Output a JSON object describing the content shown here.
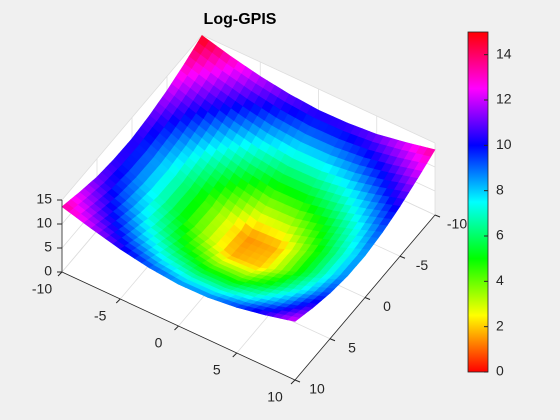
{
  "chart_data": {
    "type": "surface",
    "title": "Log-GPIS",
    "x": [
      -10,
      -7.5,
      -5,
      -2.5,
      0,
      2.5,
      5,
      7.5,
      10
    ],
    "y": [
      -10,
      -7.5,
      -5,
      -2.5,
      0,
      2.5,
      5,
      7.5,
      10
    ],
    "z": [
      [
        14.9,
        13.3,
        12.0,
        11.1,
        10.6,
        10.7,
        11.2,
        12.3,
        13.6
      ],
      [
        13.3,
        11.5,
        10.0,
        8.8,
        8.2,
        8.3,
        9.0,
        10.3,
        11.9
      ],
      [
        12.0,
        10.0,
        8.1,
        6.7,
        5.8,
        5.9,
        6.9,
        8.5,
        10.4
      ],
      [
        11.1,
        8.8,
        6.7,
        4.8,
        3.5,
        3.7,
        5.1,
        7.1,
        9.3
      ],
      [
        10.6,
        8.2,
        5.8,
        3.5,
        1.4,
        1.7,
        4.0,
        6.3,
        8.7
      ],
      [
        10.7,
        8.3,
        5.9,
        3.7,
        1.7,
        2.0,
        4.1,
        6.4,
        8.8
      ],
      [
        11.2,
        9.0,
        6.9,
        5.1,
        4.0,
        4.1,
        5.4,
        7.3,
        9.5
      ],
      [
        12.3,
        10.3,
        8.5,
        7.1,
        6.3,
        6.4,
        7.3,
        8.8,
        10.7
      ],
      [
        13.6,
        11.9,
        10.4,
        9.3,
        8.7,
        8.8,
        9.5,
        10.7,
        12.2
      ]
    ],
    "xlim": [
      -10,
      10
    ],
    "ylim": [
      -10,
      10
    ],
    "zlim": [
      0,
      15
    ],
    "xticks": [
      -10,
      -5,
      0,
      5,
      10
    ],
    "yticks": [
      -10,
      -5,
      0,
      5,
      10
    ],
    "zticks": [
      0,
      5,
      10,
      15
    ],
    "clim": [
      0,
      15
    ],
    "colorbar_ticks": [
      0,
      2,
      4,
      6,
      8,
      10,
      12,
      14
    ],
    "colormap": [
      "#ff0000",
      "#ffff00",
      "#00ff00",
      "#00ffff",
      "#0000ff",
      "#ff00ff",
      "#ff0000"
    ],
    "grid": true
  }
}
